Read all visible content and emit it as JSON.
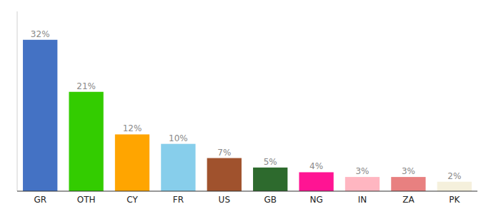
{
  "chart_data": {
    "type": "bar",
    "categories": [
      "GR",
      "OTH",
      "CY",
      "FR",
      "US",
      "GB",
      "NG",
      "IN",
      "ZA",
      "PK"
    ],
    "values": [
      32,
      21,
      12,
      10,
      7,
      5,
      4,
      3,
      3,
      2
    ],
    "value_labels": [
      "32%",
      "21%",
      "12%",
      "10%",
      "7%",
      "5%",
      "4%",
      "3%",
      "3%",
      "2%"
    ],
    "colors": [
      "#4472c4",
      "#33cc00",
      "#ffa500",
      "#87ceeb",
      "#a0522d",
      "#2d6a2d",
      "#ff1493",
      "#ffb6c1",
      "#e88080",
      "#f5f0dc"
    ],
    "ylim": [
      0,
      38
    ],
    "data_labels": true,
    "grid": false,
    "tick_labels": "x"
  }
}
